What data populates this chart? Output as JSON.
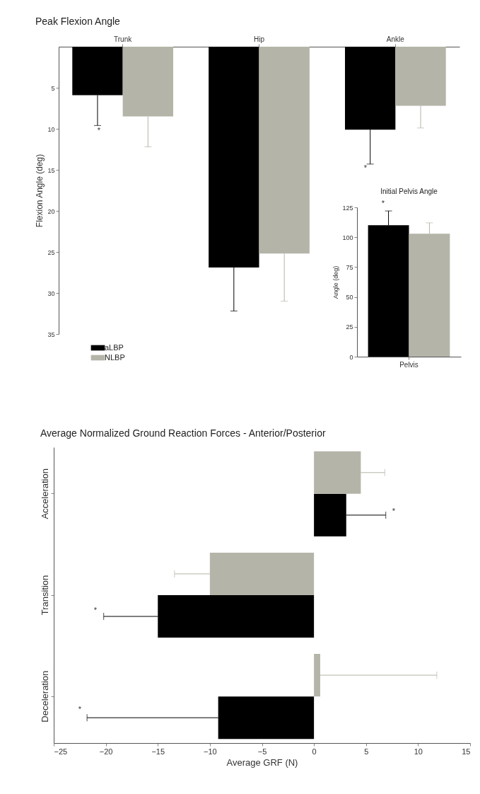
{
  "chart_data": [
    {
      "type": "bar",
      "title": "Peak Flexion Angle",
      "ylabel": "Flexion Angle (deg)",
      "categories": [
        "Trunk",
        "Hip",
        "Ankle"
      ],
      "ylim": [
        35,
        0
      ],
      "yticks": [
        5,
        10,
        15,
        20,
        25,
        30,
        35
      ],
      "legend": "bottom left",
      "series": [
        {
          "name": "aLBP",
          "color": "#000000",
          "values": [
            5.9,
            26.9,
            10.1
          ],
          "errors": [
            [
              5.9,
              9.6
            ],
            [
              26.9,
              32.2
            ],
            [
              10.1,
              14.3
            ]
          ]
        },
        {
          "name": "NLBP",
          "color": "#b4b4a8",
          "values": [
            8.5,
            25.2,
            7.2
          ],
          "errors": [
            [
              8.5,
              12.2
            ],
            [
              25.2,
              31.0
            ],
            [
              7.2,
              9.9
            ]
          ]
        }
      ],
      "annotations": [
        "*",
        "*"
      ]
    },
    {
      "type": "bar",
      "title": "Initial Pelvis Angle",
      "ylabel": "Angle (deg)",
      "categories": [
        "Pelvis"
      ],
      "ylim": [
        0,
        125
      ],
      "yticks": [
        0,
        25,
        50,
        75,
        100,
        125
      ],
      "series": [
        {
          "color": "#000000",
          "values": [
            110
          ],
          "errors": [
            [
              110,
              122
            ]
          ]
        },
        {
          "color": "#b4b4a8",
          "values": [
            103
          ],
          "errors": [
            [
              103,
              112
            ]
          ]
        }
      ],
      "annotations": [
        "*"
      ]
    },
    {
      "type": "bar",
      "orientation": "horizontal",
      "title": "Average Normalized Ground Reaction Forces - Anterior/Posterior",
      "xlabel": "Average GRF (N)",
      "categories": [
        "Acceleration",
        "Transition",
        "Deceleration"
      ],
      "xlim": [
        -25,
        15
      ],
      "xticks": [
        -25,
        -20,
        -15,
        -10,
        -5,
        0,
        5,
        10,
        15
      ],
      "series": [
        {
          "color": "#000000",
          "values": [
            3.1,
            -15.0,
            -9.2
          ],
          "errors": [
            [
              3.1,
              6.9
            ],
            [
              -15.0,
              -20.2
            ],
            [
              -9.2,
              -21.8
            ]
          ]
        },
        {
          "color": "#b4b4a8",
          "values": [
            4.5,
            -10.0,
            0.6
          ],
          "errors": [
            [
              4.5,
              6.8
            ],
            [
              -10.0,
              -13.4
            ],
            [
              0.6,
              11.8
            ]
          ]
        }
      ],
      "annotations": [
        "*",
        "*",
        "*"
      ]
    }
  ]
}
